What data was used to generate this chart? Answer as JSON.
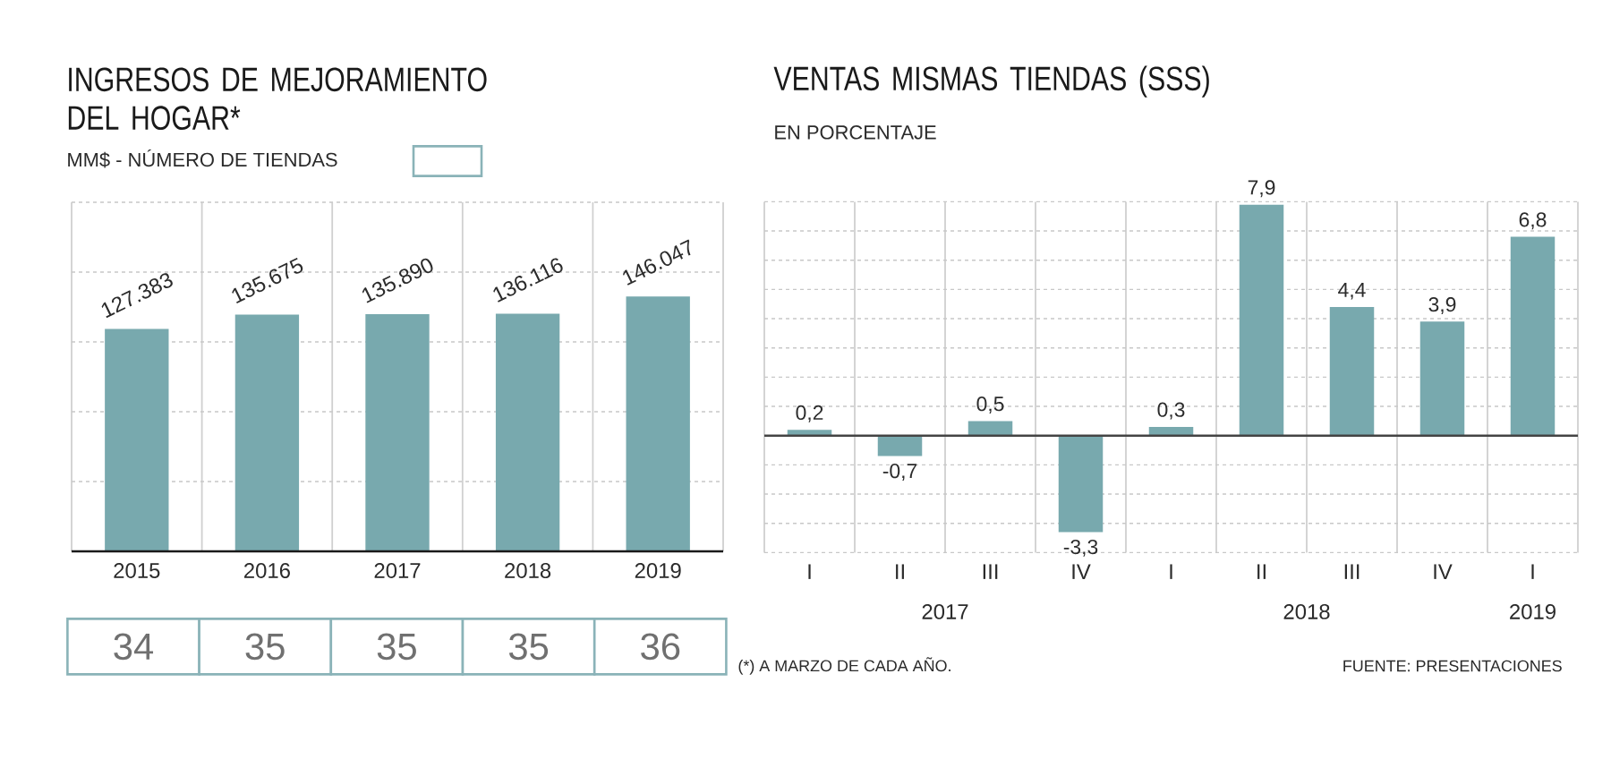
{
  "chart_data": [
    {
      "type": "bar",
      "title": "INGRESOS DE MEJORAMIENTO DEL HOGAR*",
      "subtitle": "MM$ - NÚMERO DE TIENDAS",
      "categories": [
        "2015",
        "2016",
        "2017",
        "2018",
        "2019"
      ],
      "values": [
        127383,
        135675,
        135890,
        136116,
        146047
      ],
      "value_labels": [
        "127.383",
        "135.675",
        "135.890",
        "136.116",
        "146.047"
      ],
      "color": "#78a9ae",
      "ylim": [
        0,
        200000
      ],
      "yticks": [
        {
          "value": 0,
          "label": null
        },
        {
          "value": 40000,
          "label": null
        },
        {
          "value": 80000,
          "label": null
        },
        {
          "value": 120000,
          "label": null
        },
        {
          "value": 160000,
          "label": null
        },
        {
          "value": 200000,
          "label": null
        }
      ],
      "grid": true,
      "tick_labels": "x",
      "annotations": [
        "(*) A MARZO DE CADA AÑO."
      ]
    },
    {
      "type": "other",
      "categories": [
        null,
        null,
        null,
        null,
        null
      ],
      "values": [
        34,
        35,
        35,
        35,
        36
      ],
      "data_labels": true,
      "color": "#8ab3b8"
    },
    {
      "type": "bar",
      "title": "VENTAS MISMAS TIENDAS (SSS)",
      "subtitle": "EN PORCENTAJE",
      "categories": [
        "I",
        "II",
        "III",
        "IV",
        "I",
        "II",
        "III",
        "IV",
        "I"
      ],
      "values": [
        0.2,
        -0.7,
        0.5,
        -3.3,
        0.3,
        7.9,
        4.4,
        3.9,
        6.8
      ],
      "value_labels": [
        "0,2",
        "-0,7",
        "0,5",
        "-3,3",
        "0,3",
        "7,9",
        "4,4",
        "3,9",
        "6,8"
      ],
      "color": "#78a9ae",
      "ylim": [
        -4,
        8
      ],
      "yticks": [
        {
          "value": -4,
          "label": null
        },
        {
          "value": -3,
          "label": null
        },
        {
          "value": -2,
          "label": null
        },
        {
          "value": -1,
          "label": null
        },
        {
          "value": 0,
          "label": null
        },
        {
          "value": 1,
          "label": null
        },
        {
          "value": 2,
          "label": null
        },
        {
          "value": 3,
          "label": null
        },
        {
          "value": 4,
          "label": null
        },
        {
          "value": 5,
          "label": null
        },
        {
          "value": 6,
          "label": null
        },
        {
          "value": 7,
          "label": null
        },
        {
          "value": 8,
          "label": null
        }
      ],
      "grid": true,
      "tick_labels": "x",
      "annotations": [
        "2017",
        "2018",
        "2019",
        "FUENTE: PRESENTACIONES"
      ]
    }
  ]
}
